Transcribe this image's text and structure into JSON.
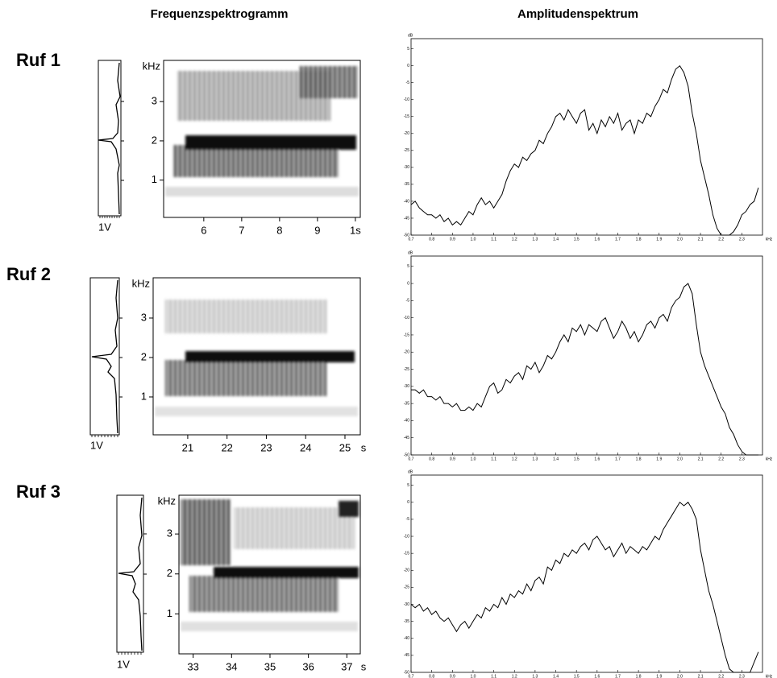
{
  "headers": {
    "left": "Frequenzspektrogramm",
    "right": "Amplitudenspektrum"
  },
  "rows": [
    {
      "label": "Ruf 1",
      "profile_label": "1V"
    },
    {
      "label": "Ruf 2",
      "profile_label": "1V"
    },
    {
      "label": "Ruf 3",
      "profile_label": "1V"
    }
  ],
  "chart_data": [
    {
      "type": "spectrogram",
      "ylabel": "kHz",
      "ylim": [
        0.05,
        4.05
      ],
      "yticks": [
        1,
        2,
        3
      ],
      "xlim": [
        4.94,
        10.13
      ],
      "xticks": [
        6,
        7,
        8,
        9,
        {
          "value": 10,
          "label": "1s"
        }
      ]
    },
    {
      "type": "spectrogram",
      "ylabel": "kHz",
      "ylim": [
        0.04,
        4.02
      ],
      "yticks": [
        1,
        2,
        3
      ],
      "xlim": [
        20.12,
        25.39
      ],
      "xticks": [
        21,
        22,
        23,
        24,
        25
      ],
      "x_unit": "s"
    },
    {
      "type": "spectrogram",
      "ylabel": "kHz",
      "ylim": [
        0,
        3.97
      ],
      "yticks": [
        1,
        2,
        3
      ],
      "xlim": [
        32.63,
        37.35
      ],
      "xticks": [
        33,
        34,
        35,
        36,
        37
      ],
      "x_unit": "s"
    },
    {
      "type": "line",
      "ylabel": "dB",
      "xlabel": "kHz",
      "color": "#000",
      "xlim": [
        0.7,
        2.4
      ],
      "ylim": [
        -50,
        8
      ],
      "xticks": [
        0.7,
        0.8,
        0.9,
        {
          "value": 1,
          "label": "1.0"
        },
        1.1,
        1.2,
        1.3,
        1.4,
        1.5,
        1.6,
        1.7,
        1.8,
        1.9,
        {
          "value": 2,
          "label": "2.0"
        },
        2.1,
        2.2,
        2.3
      ],
      "yticks": [
        5,
        0,
        -5,
        -10,
        -15,
        -20,
        -25,
        -30,
        -35,
        -40,
        -45,
        -50
      ],
      "x": [
        0.7,
        0.72,
        0.74,
        0.76,
        0.78,
        0.8,
        0.82,
        0.84,
        0.86,
        0.88,
        0.9,
        0.92,
        0.94,
        0.96,
        0.98,
        1.0,
        1.02,
        1.04,
        1.06,
        1.08,
        1.1,
        1.12,
        1.14,
        1.16,
        1.18,
        1.2,
        1.22,
        1.24,
        1.26,
        1.28,
        1.3,
        1.32,
        1.34,
        1.36,
        1.38,
        1.4,
        1.42,
        1.44,
        1.46,
        1.48,
        1.5,
        1.52,
        1.54,
        1.56,
        1.58,
        1.6,
        1.62,
        1.64,
        1.66,
        1.68,
        1.7,
        1.72,
        1.74,
        1.76,
        1.78,
        1.8,
        1.82,
        1.84,
        1.86,
        1.88,
        1.9,
        1.92,
        1.94,
        1.96,
        1.98,
        2.0,
        2.02,
        2.04,
        2.06,
        2.08,
        2.1,
        2.12,
        2.14,
        2.16,
        2.18,
        2.2,
        2.22,
        2.24,
        2.26,
        2.28,
        2.3,
        2.32,
        2.34,
        2.36,
        2.38
      ],
      "values": [
        -41,
        -40,
        -42,
        -43,
        -44,
        -44,
        -45,
        -44,
        -46,
        -45,
        -47,
        -46,
        -47,
        -45,
        -43,
        -44,
        -41,
        -39,
        -41,
        -40,
        -42,
        -40,
        -38,
        -34,
        -31,
        -29,
        -30,
        -27,
        -28,
        -26,
        -25,
        -22,
        -23,
        -20,
        -18,
        -15,
        -14,
        -16,
        -13,
        -15,
        -17,
        -14,
        -13,
        -19,
        -17,
        -20,
        -16,
        -18,
        -15,
        -17,
        -14,
        -19,
        -17,
        -16,
        -20,
        -16,
        -17,
        -14,
        -15,
        -12,
        -10,
        -7,
        -8,
        -4,
        -1,
        0,
        -2,
        -6,
        -14,
        -20,
        -28,
        -33,
        -38,
        -44,
        -48,
        -50,
        -50,
        -50,
        -49,
        -47,
        -44,
        -43,
        -41,
        -40,
        -36
      ]
    },
    {
      "type": "line",
      "ylabel": "dB",
      "xlabel": "kHz",
      "color": "#000",
      "xlim": [
        0.7,
        2.4
      ],
      "ylim": [
        -50,
        8
      ],
      "xticks": [
        0.7,
        0.8,
        0.9,
        {
          "value": 1,
          "label": "1.0"
        },
        1.1,
        1.2,
        1.3,
        1.4,
        1.5,
        1.6,
        1.7,
        1.8,
        1.9,
        {
          "value": 2,
          "label": "2.0"
        },
        2.1,
        2.2,
        2.3
      ],
      "yticks": [
        5,
        0,
        -5,
        -10,
        -15,
        -20,
        -25,
        -30,
        -35,
        -40,
        -45,
        -50
      ],
      "x": [
        0.7,
        0.72,
        0.74,
        0.76,
        0.78,
        0.8,
        0.82,
        0.84,
        0.86,
        0.88,
        0.9,
        0.92,
        0.94,
        0.96,
        0.98,
        1.0,
        1.02,
        1.04,
        1.06,
        1.08,
        1.1,
        1.12,
        1.14,
        1.16,
        1.18,
        1.2,
        1.22,
        1.24,
        1.26,
        1.28,
        1.3,
        1.32,
        1.34,
        1.36,
        1.38,
        1.4,
        1.42,
        1.44,
        1.46,
        1.48,
        1.5,
        1.52,
        1.54,
        1.56,
        1.58,
        1.6,
        1.62,
        1.64,
        1.66,
        1.68,
        1.7,
        1.72,
        1.74,
        1.76,
        1.78,
        1.8,
        1.82,
        1.84,
        1.86,
        1.88,
        1.9,
        1.92,
        1.94,
        1.96,
        1.98,
        2.0,
        2.02,
        2.04,
        2.06,
        2.08,
        2.1,
        2.12,
        2.14,
        2.16,
        2.18,
        2.2,
        2.22,
        2.24,
        2.26,
        2.28,
        2.3,
        2.32,
        2.34,
        2.36,
        2.38
      ],
      "values": [
        -31,
        -31,
        -32,
        -31,
        -33,
        -33,
        -34,
        -33,
        -35,
        -35,
        -36,
        -35,
        -37,
        -37,
        -36,
        -37,
        -35,
        -36,
        -33,
        -30,
        -29,
        -32,
        -31,
        -28,
        -29,
        -27,
        -26,
        -28,
        -24,
        -25,
        -23,
        -26,
        -24,
        -21,
        -22,
        -20,
        -17,
        -15,
        -17,
        -13,
        -14,
        -12,
        -15,
        -12,
        -13,
        -14,
        -11,
        -10,
        -13,
        -16,
        -14,
        -11,
        -13,
        -16,
        -14,
        -17,
        -15,
        -12,
        -11,
        -13,
        -10,
        -9,
        -11,
        -7,
        -5,
        -4,
        -1,
        0,
        -3,
        -12,
        -20,
        -24,
        -27,
        -30,
        -33,
        -36,
        -38,
        -42,
        -44,
        -47,
        -49,
        -50,
        -50,
        -50,
        -50
      ]
    },
    {
      "type": "line",
      "ylabel": "dB",
      "xlabel": "kHz",
      "color": "#000",
      "xlim": [
        0.7,
        2.4
      ],
      "ylim": [
        -50,
        8
      ],
      "xticks": [
        0.7,
        0.8,
        0.9,
        {
          "value": 1,
          "label": "1.0"
        },
        1.1,
        1.2,
        1.3,
        1.4,
        1.5,
        1.6,
        1.7,
        1.8,
        1.9,
        {
          "value": 2,
          "label": "2.0"
        },
        2.1,
        2.2,
        2.3
      ],
      "yticks": [
        5,
        0,
        -5,
        -10,
        -15,
        -20,
        -25,
        -30,
        -35,
        -40,
        -45,
        -50
      ],
      "x": [
        0.7,
        0.72,
        0.74,
        0.76,
        0.78,
        0.8,
        0.82,
        0.84,
        0.86,
        0.88,
        0.9,
        0.92,
        0.94,
        0.96,
        0.98,
        1.0,
        1.02,
        1.04,
        1.06,
        1.08,
        1.1,
        1.12,
        1.14,
        1.16,
        1.18,
        1.2,
        1.22,
        1.24,
        1.26,
        1.28,
        1.3,
        1.32,
        1.34,
        1.36,
        1.38,
        1.4,
        1.42,
        1.44,
        1.46,
        1.48,
        1.5,
        1.52,
        1.54,
        1.56,
        1.58,
        1.6,
        1.62,
        1.64,
        1.66,
        1.68,
        1.7,
        1.72,
        1.74,
        1.76,
        1.78,
        1.8,
        1.82,
        1.84,
        1.86,
        1.88,
        1.9,
        1.92,
        1.94,
        1.96,
        1.98,
        2.0,
        2.02,
        2.04,
        2.06,
        2.08,
        2.1,
        2.12,
        2.14,
        2.16,
        2.18,
        2.2,
        2.22,
        2.24,
        2.26,
        2.28,
        2.3,
        2.32,
        2.34,
        2.36,
        2.38
      ],
      "values": [
        -30,
        -31,
        -30,
        -32,
        -31,
        -33,
        -32,
        -34,
        -35,
        -34,
        -36,
        -38,
        -36,
        -35,
        -37,
        -35,
        -33,
        -34,
        -31,
        -32,
        -30,
        -31,
        -28,
        -30,
        -27,
        -28,
        -26,
        -27,
        -24,
        -26,
        -23,
        -22,
        -24,
        -19,
        -20,
        -17,
        -18,
        -15,
        -16,
        -14,
        -15,
        -13,
        -12,
        -14,
        -11,
        -10,
        -12,
        -14,
        -13,
        -16,
        -14,
        -12,
        -15,
        -13,
        -14,
        -15,
        -13,
        -14,
        -12,
        -10,
        -11,
        -8,
        -6,
        -4,
        -2,
        0,
        -1,
        0,
        -2,
        -5,
        -14,
        -20,
        -26,
        -30,
        -35,
        -40,
        -45,
        -49,
        -50,
        -50,
        -50,
        -50,
        -50,
        -47,
        -44
      ]
    }
  ]
}
